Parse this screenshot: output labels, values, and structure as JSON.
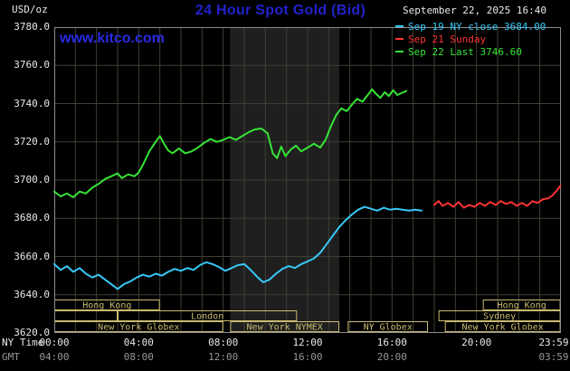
{
  "header": {
    "units_label": "USD/oz",
    "title": "24 Hour Spot Gold (Bid)",
    "datetime": "September 22, 2025 16:40",
    "site": "www.kitco.com",
    "legend": [
      {
        "label": "Sep 19 NY close 3684.00",
        "color": "#38c8f8"
      },
      {
        "label": "Sep 21 Sunday",
        "color": "#ff3333"
      },
      {
        "label": "Sep 22 Last 3746.60",
        "color": "#36e436"
      }
    ]
  },
  "colors": {
    "kitco_blue": "#2222cc",
    "link_blue": "#2a2ae6",
    "text_white": "#e9e9e9",
    "text_gray": "#989898",
    "grid": "#3f3f35",
    "band": "#1f1f1f",
    "border": "#8c8c8c",
    "session": "#c9bb70"
  },
  "axes": {
    "ny_label": "NY Time",
    "gmt_label": "GMT",
    "y_ticks": [
      "3780.0",
      "3760.0",
      "3740.0",
      "3720.0",
      "3700.0",
      "3680.0",
      "3660.0",
      "3640.0",
      "3620.0"
    ],
    "ny_ticks": [
      {
        "t": 0,
        "label": "00:00"
      },
      {
        "t": 4,
        "label": "04:00"
      },
      {
        "t": 8,
        "label": "08:00"
      },
      {
        "t": 12,
        "label": "12:00"
      },
      {
        "t": 16,
        "label": "16:00"
      },
      {
        "t": 20,
        "label": "20:00"
      },
      {
        "t": 23.983,
        "label": "23:59"
      }
    ],
    "gmt_ticks": [
      {
        "t": 0,
        "label": "04:00"
      },
      {
        "t": 4,
        "label": "08:00"
      },
      {
        "t": 8,
        "label": "12:00"
      },
      {
        "t": 12,
        "label": "16:00"
      },
      {
        "t": 16,
        "label": "20:00"
      },
      {
        "t": 23.983,
        "label": "03:59"
      }
    ]
  },
  "sessions": {
    "rows": [
      {
        "boxes": [
          {
            "from": 0,
            "to": 5.0,
            "label": "Hong Kong"
          },
          {
            "from": 20.3,
            "to": 23.983,
            "label": "Hong Kong"
          }
        ]
      },
      {
        "boxes": [
          {
            "from": 0,
            "to": 3.0,
            "label": ""
          },
          {
            "from": 3.0,
            "to": 11.5,
            "label": "London"
          },
          {
            "from": 18.2,
            "to": 23.983,
            "label": "Sydney"
          }
        ]
      },
      {
        "boxes": [
          {
            "from": 0,
            "to": 8.0,
            "label": "New York Globex"
          },
          {
            "from": 8.33,
            "to": 13.5,
            "label": "New York NYMEX"
          },
          {
            "from": 13.9,
            "to": 17.7,
            "label": "NY Globex"
          },
          {
            "from": 18.5,
            "to": 23.983,
            "label": "New York Globex"
          }
        ]
      }
    ]
  },
  "chart_data": {
    "type": "line",
    "title": "24 Hour Spot Gold (Bid)",
    "xlabel": "NY Time (hours)",
    "ylabel": "USD/oz",
    "xlim": [
      0,
      24
    ],
    "ylim": [
      3620,
      3780
    ],
    "y_grid_step": 20,
    "x_grid_step_hours": 1,
    "grid": true,
    "legend_position": "top-right",
    "nymex_band": {
      "from_hour": 8.33,
      "to_hour": 13.5
    },
    "series": [
      {
        "id": "sep19",
        "name": "Sep 19 NY close 3684.00",
        "color": "#38c8f8",
        "close": 3684.0,
        "points": [
          [
            0,
            3656
          ],
          [
            0.3,
            3653
          ],
          [
            0.6,
            3655
          ],
          [
            0.9,
            3652
          ],
          [
            1.2,
            3654
          ],
          [
            1.5,
            3651
          ],
          [
            1.8,
            3649
          ],
          [
            2.1,
            3650.5
          ],
          [
            2.4,
            3648
          ],
          [
            2.7,
            3645.5
          ],
          [
            3,
            3643
          ],
          [
            3.3,
            3645.5
          ],
          [
            3.6,
            3647
          ],
          [
            3.9,
            3649
          ],
          [
            4.2,
            3650.5
          ],
          [
            4.5,
            3649.5
          ],
          [
            4.8,
            3651
          ],
          [
            5.1,
            3650
          ],
          [
            5.4,
            3652
          ],
          [
            5.7,
            3653.5
          ],
          [
            6,
            3652.5
          ],
          [
            6.3,
            3654
          ],
          [
            6.6,
            3653
          ],
          [
            6.9,
            3655.5
          ],
          [
            7.2,
            3657
          ],
          [
            7.5,
            3656
          ],
          [
            7.8,
            3654.5
          ],
          [
            8.1,
            3652.5
          ],
          [
            8.4,
            3654
          ],
          [
            8.7,
            3655.5
          ],
          [
            9,
            3656
          ],
          [
            9.3,
            3653
          ],
          [
            9.6,
            3649.5
          ],
          [
            9.9,
            3646.5
          ],
          [
            10.2,
            3648
          ],
          [
            10.5,
            3651
          ],
          [
            10.8,
            3653.5
          ],
          [
            11.1,
            3655
          ],
          [
            11.4,
            3654
          ],
          [
            11.7,
            3656
          ],
          [
            12,
            3657.5
          ],
          [
            12.3,
            3659
          ],
          [
            12.6,
            3662
          ],
          [
            12.9,
            3666.5
          ],
          [
            13.2,
            3671
          ],
          [
            13.5,
            3675.5
          ],
          [
            13.8,
            3679
          ],
          [
            14.1,
            3682
          ],
          [
            14.4,
            3684.5
          ],
          [
            14.7,
            3686
          ],
          [
            15,
            3685
          ],
          [
            15.3,
            3684
          ],
          [
            15.6,
            3685.5
          ],
          [
            15.9,
            3684.5
          ],
          [
            16.2,
            3685
          ],
          [
            16.5,
            3684.5
          ],
          [
            16.8,
            3684
          ],
          [
            17.1,
            3684.5
          ],
          [
            17.4,
            3684
          ]
        ]
      },
      {
        "id": "sep21",
        "name": "Sep 21 Sunday",
        "color": "#ff3333",
        "points": [
          [
            18,
            3687
          ],
          [
            18.2,
            3689
          ],
          [
            18.4,
            3686.5
          ],
          [
            18.65,
            3688
          ],
          [
            18.9,
            3686
          ],
          [
            19.15,
            3688.5
          ],
          [
            19.4,
            3685.5
          ],
          [
            19.65,
            3687
          ],
          [
            19.9,
            3686
          ],
          [
            20.15,
            3688
          ],
          [
            20.4,
            3686.5
          ],
          [
            20.65,
            3688.5
          ],
          [
            20.9,
            3687
          ],
          [
            21.15,
            3689
          ],
          [
            21.4,
            3687.5
          ],
          [
            21.65,
            3688.5
          ],
          [
            21.9,
            3686.5
          ],
          [
            22.15,
            3688
          ],
          [
            22.4,
            3686.5
          ],
          [
            22.65,
            3689
          ],
          [
            22.9,
            3688
          ],
          [
            23.15,
            3690
          ],
          [
            23.4,
            3690.5
          ],
          [
            23.6,
            3692
          ],
          [
            23.8,
            3694.5
          ],
          [
            23.98,
            3697
          ]
        ]
      },
      {
        "id": "sep22",
        "name": "Sep 22 Last 3746.60",
        "color": "#36e436",
        "last": 3746.6,
        "points": [
          [
            0,
            3694
          ],
          [
            0.3,
            3691.5
          ],
          [
            0.6,
            3693
          ],
          [
            0.9,
            3691
          ],
          [
            1.2,
            3694
          ],
          [
            1.5,
            3693
          ],
          [
            1.8,
            3696
          ],
          [
            2.1,
            3698
          ],
          [
            2.4,
            3700.5
          ],
          [
            2.7,
            3702
          ],
          [
            3,
            3703.5
          ],
          [
            3.2,
            3701
          ],
          [
            3.5,
            3703
          ],
          [
            3.8,
            3702
          ],
          [
            4,
            3704
          ],
          [
            4.2,
            3708
          ],
          [
            4.5,
            3715
          ],
          [
            4.8,
            3720
          ],
          [
            5,
            3723
          ],
          [
            5.2,
            3719
          ],
          [
            5.4,
            3715.5
          ],
          [
            5.6,
            3714
          ],
          [
            5.9,
            3716.5
          ],
          [
            6.2,
            3714
          ],
          [
            6.5,
            3715
          ],
          [
            6.8,
            3717
          ],
          [
            7.1,
            3719.5
          ],
          [
            7.4,
            3721.5
          ],
          [
            7.7,
            3720
          ],
          [
            8,
            3721
          ],
          [
            8.3,
            3722.5
          ],
          [
            8.6,
            3721
          ],
          [
            8.9,
            3723
          ],
          [
            9.2,
            3725
          ],
          [
            9.5,
            3726.5
          ],
          [
            9.8,
            3727
          ],
          [
            10.1,
            3724.5
          ],
          [
            10.35,
            3714
          ],
          [
            10.55,
            3711.5
          ],
          [
            10.75,
            3717.5
          ],
          [
            10.95,
            3712.5
          ],
          [
            11.2,
            3716
          ],
          [
            11.45,
            3718
          ],
          [
            11.7,
            3715
          ],
          [
            12,
            3717
          ],
          [
            12.3,
            3719
          ],
          [
            12.6,
            3717
          ],
          [
            12.85,
            3721
          ],
          [
            13.1,
            3728
          ],
          [
            13.35,
            3734
          ],
          [
            13.6,
            3737.5
          ],
          [
            13.85,
            3736
          ],
          [
            14.1,
            3739.5
          ],
          [
            14.35,
            3742.5
          ],
          [
            14.6,
            3741
          ],
          [
            14.85,
            3744.5
          ],
          [
            15.05,
            3747.5
          ],
          [
            15.25,
            3745
          ],
          [
            15.45,
            3743
          ],
          [
            15.65,
            3746
          ],
          [
            15.85,
            3744
          ],
          [
            16.05,
            3747
          ],
          [
            16.25,
            3744.5
          ],
          [
            16.45,
            3745.5
          ],
          [
            16.67,
            3746.6
          ]
        ]
      }
    ]
  }
}
